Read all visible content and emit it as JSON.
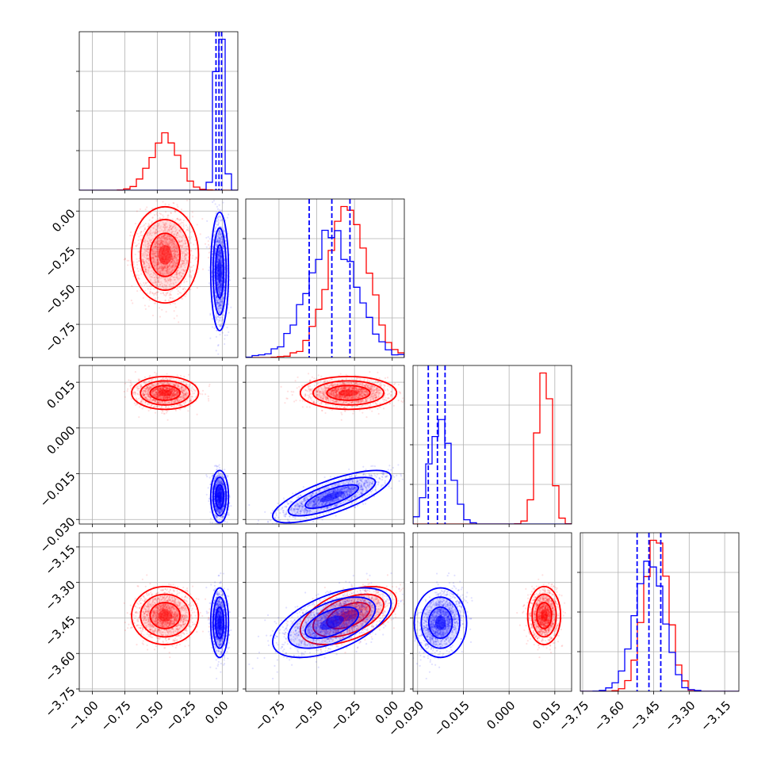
{
  "chart_data": {
    "type": "corner",
    "colors": {
      "series_a": "#ff0000",
      "series_b": "#0000ff"
    },
    "grid": true,
    "variables": [
      {
        "range": [
          -1.1,
          0.12
        ],
        "ticks": [
          -1.0,
          -0.75,
          -0.5,
          -0.25,
          0.0
        ],
        "tick_labels": [
          "−1.00",
          "−0.75",
          "−0.50",
          "−0.25",
          "0.00"
        ]
      },
      {
        "range": [
          -0.97,
          0.08
        ],
        "ticks": [
          -0.75,
          -0.5,
          -0.25,
          0.0
        ],
        "tick_labels": [
          "−0.75",
          "−0.50",
          "−0.25",
          "0.00"
        ]
      },
      {
        "range": [
          -0.0315,
          0.0205
        ],
        "ticks": [
          -0.03,
          -0.015,
          0.0,
          0.015
        ],
        "tick_labels": [
          "−0.030",
          "−0.015",
          "0.000",
          "0.015"
        ]
      },
      {
        "range": [
          -3.76,
          -3.09
        ],
        "ticks": [
          -3.75,
          -3.6,
          -3.45,
          -3.3,
          -3.15
        ],
        "tick_labels": [
          "−3.75",
          "−3.60",
          "−3.45",
          "−3.30",
          "−3.15"
        ]
      }
    ],
    "series": [
      {
        "color": "#ff0000",
        "mean": [
          -0.44,
          -0.29,
          0.0115,
          -3.44
        ],
        "std": [
          0.105,
          0.13,
          0.0022,
          0.05
        ],
        "corr": [
          [
            1,
            0,
            0,
            0
          ],
          [
            0,
            1,
            0,
            0.5
          ],
          [
            0,
            0,
            1,
            0
          ],
          [
            0,
            0.5,
            0,
            1
          ]
        ]
      },
      {
        "color": "#0000ff",
        "mean": [
          -0.02,
          -0.4,
          -0.0225,
          -3.47
        ],
        "std": [
          0.028,
          0.16,
          0.0035,
          0.06
        ],
        "corr": [
          [
            1,
            0,
            0,
            0
          ],
          [
            0,
            1,
            0.75,
            0.55
          ],
          [
            0,
            0.75,
            1,
            0
          ],
          [
            0,
            0.55,
            0,
            1
          ]
        ]
      }
    ],
    "quantile_lines": [
      [
        -0.048,
        -0.025,
        -0.005
      ],
      [
        -0.55,
        -0.4,
        -0.28
      ],
      [
        -0.0265,
        -0.0235,
        -0.021
      ],
      [
        -3.52,
        -3.47,
        -3.42
      ]
    ]
  }
}
